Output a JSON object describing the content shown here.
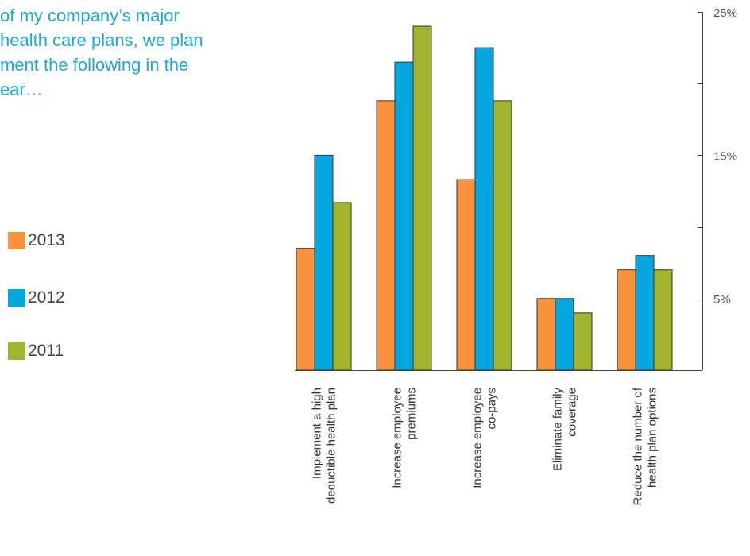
{
  "chart_data": {
    "type": "bar",
    "title_lines": [
      "of my company’s major",
      "health care plans, we plan",
      "ment the following in the",
      "ear…"
    ],
    "categories": [
      [
        "Implement a high",
        "deductible health plan"
      ],
      [
        "Increase employee",
        "premiums"
      ],
      [
        "Increase employee",
        "co-pays"
      ],
      [
        "Eliminate family",
        "coverage"
      ],
      [
        "Reduce the number of",
        "health plan options"
      ]
    ],
    "series": [
      {
        "name": "2013",
        "color": "#f7943d",
        "values": [
          8.5,
          18.8,
          13.3,
          5.0,
          7.0
        ]
      },
      {
        "name": "2012",
        "color": "#06a7e0",
        "values": [
          15.0,
          21.5,
          22.5,
          5.0,
          8.0
        ]
      },
      {
        "name": "2011",
        "color": "#a3b52e",
        "values": [
          11.7,
          24.0,
          18.8,
          4.0,
          7.0
        ]
      }
    ],
    "y_axis": {
      "min": 0,
      "max": 25,
      "major_ticks": [
        0,
        5,
        10,
        15,
        20,
        25
      ],
      "labeled_ticks": [
        {
          "value": 5,
          "label": "5%"
        },
        {
          "value": 15,
          "label": "15%"
        },
        {
          "value": 25,
          "label": "25%"
        }
      ],
      "position": "right"
    },
    "grid": false,
    "legend_position": "left"
  }
}
